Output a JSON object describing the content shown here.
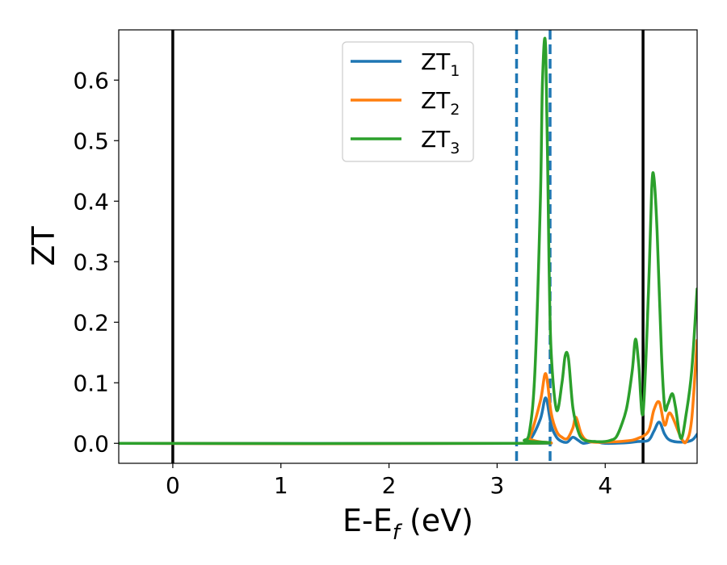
{
  "chart_data": {
    "type": "line",
    "title": "",
    "xlabel": "E-E_f (eV)",
    "xlabel_parts": {
      "base": "E-E",
      "sub": "f",
      "rest": " (eV)"
    },
    "ylabel": "ZT",
    "xlim": [
      -0.5,
      4.85
    ],
    "ylim": [
      -0.033,
      0.683
    ],
    "x_ticks": [
      0,
      1,
      2,
      3,
      4
    ],
    "x_tick_labels": [
      "0",
      "1",
      "2",
      "3",
      "4"
    ],
    "y_ticks": [
      0.0,
      0.1,
      0.2,
      0.3,
      0.4,
      0.5,
      0.6
    ],
    "y_tick_labels": [
      "0.0",
      "0.1",
      "0.2",
      "0.3",
      "0.4",
      "0.5",
      "0.6"
    ],
    "grid": false,
    "legend_position": "top-center",
    "vlines": [
      {
        "x": 0.0,
        "style": "solid",
        "color": "#000000"
      },
      {
        "x": 4.35,
        "style": "solid",
        "color": "#000000"
      },
      {
        "x": 3.18,
        "style": "dashed",
        "color": "#1f77b4"
      },
      {
        "x": 3.49,
        "style": "dashed",
        "color": "#1f77b4"
      }
    ],
    "series": [
      {
        "name": "ZT_1",
        "label_base": "ZT",
        "label_sub": "1",
        "color": "#1f77b4",
        "x": [
          -0.5,
          3.2,
          3.3,
          3.4,
          3.45,
          3.5,
          3.55,
          3.6,
          3.65,
          3.7,
          3.75,
          3.8,
          3.9,
          4.0,
          4.2,
          4.3,
          4.4,
          4.45,
          4.5,
          4.55,
          4.6,
          4.7,
          4.8,
          4.85
        ],
        "values": [
          0.0,
          0.0,
          0.005,
          0.04,
          0.075,
          0.03,
          0.01,
          0.003,
          0.002,
          0.01,
          0.005,
          0.0,
          0.003,
          0.0,
          0.001,
          0.003,
          0.005,
          0.02,
          0.035,
          0.015,
          0.005,
          0.002,
          0.005,
          0.015
        ]
      },
      {
        "name": "ZT_2",
        "label_base": "ZT",
        "label_sub": "2",
        "color": "#ff7f0e",
        "x": [
          -0.5,
          3.2,
          3.3,
          3.4,
          3.45,
          3.5,
          3.55,
          3.6,
          3.65,
          3.7,
          3.73,
          3.78,
          3.85,
          4.0,
          4.2,
          4.3,
          4.4,
          4.45,
          4.5,
          4.55,
          4.6,
          4.7,
          4.75,
          4.8,
          4.85
        ],
        "values": [
          0.0,
          0.0,
          0.01,
          0.07,
          0.115,
          0.05,
          0.02,
          0.01,
          0.008,
          0.025,
          0.043,
          0.015,
          0.003,
          0.002,
          0.004,
          0.008,
          0.02,
          0.055,
          0.068,
          0.03,
          0.05,
          0.01,
          0.003,
          0.04,
          0.17
        ]
      },
      {
        "name": "ZT_3",
        "label_base": "ZT",
        "label_sub": "3",
        "color": "#2ca02c",
        "x": [
          -0.5,
          3.2,
          3.25,
          3.3,
          3.35,
          3.4,
          3.42,
          3.45,
          3.48,
          3.5,
          3.55,
          3.6,
          3.63,
          3.66,
          3.7,
          3.75,
          3.8,
          3.9,
          4.0,
          4.05,
          4.1,
          4.15,
          4.2,
          4.25,
          4.28,
          4.31,
          4.35,
          4.4,
          4.43,
          4.45,
          4.48,
          4.52,
          4.55,
          4.58,
          4.62,
          4.65,
          4.7,
          4.75,
          4.8,
          4.85
        ],
        "values": [
          0.0,
          0.0,
          0.005,
          0.02,
          0.12,
          0.4,
          0.6,
          0.65,
          0.3,
          0.15,
          0.055,
          0.1,
          0.145,
          0.14,
          0.06,
          0.02,
          0.006,
          0.003,
          0.003,
          0.005,
          0.01,
          0.03,
          0.06,
          0.12,
          0.172,
          0.13,
          0.05,
          0.25,
          0.42,
          0.44,
          0.35,
          0.15,
          0.06,
          0.065,
          0.082,
          0.06,
          0.008,
          0.05,
          0.12,
          0.255
        ]
      }
    ]
  }
}
